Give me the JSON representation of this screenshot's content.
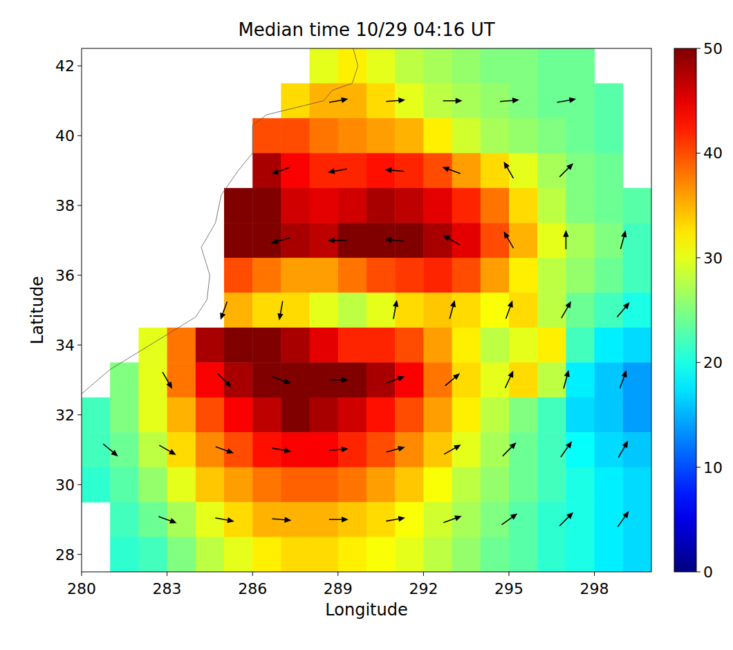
{
  "chart_data": {
    "type": "heatmap",
    "title": "Median time 10/29 04:16 UT",
    "x_label": "Longitude",
    "y_label": "Latitude",
    "xlim": [
      280,
      300
    ],
    "ylim": [
      27.5,
      42.5
    ],
    "xticks": [
      280,
      283,
      286,
      289,
      292,
      295,
      298
    ],
    "yticks": [
      28,
      30,
      32,
      34,
      36,
      38,
      40,
      42
    ],
    "colorbar": {
      "range": [
        0,
        50
      ],
      "ticks": [
        0,
        10,
        20,
        30,
        40,
        50
      ]
    },
    "cells": {
      "lon": [
        280.5,
        281.5,
        282.5,
        283.5,
        284.5,
        285.5,
        286.5,
        287.5,
        288.5,
        289.5,
        290.5,
        291.5,
        292.5,
        293.5,
        294.5,
        295.5,
        296.5,
        297.5,
        298.5,
        299.5
      ],
      "lat": [
        42,
        41,
        40,
        39,
        38,
        37,
        36,
        35,
        34,
        33,
        32,
        31,
        30,
        29,
        28
      ],
      "values": [
        [
          null,
          null,
          null,
          null,
          null,
          null,
          null,
          null,
          30,
          32,
          30,
          28,
          27,
          26,
          25,
          25,
          24,
          24,
          null,
          null
        ],
        [
          null,
          null,
          null,
          null,
          null,
          null,
          null,
          33,
          35,
          35,
          33,
          30,
          28,
          27,
          26,
          25,
          24,
          24,
          23,
          null
        ],
        [
          null,
          null,
          null,
          null,
          null,
          null,
          40,
          40,
          38,
          37,
          36,
          35,
          32,
          29,
          27,
          26,
          25,
          24,
          23,
          null
        ],
        [
          null,
          null,
          null,
          null,
          null,
          null,
          48,
          44,
          42,
          42,
          43,
          42,
          40,
          36,
          33,
          30,
          27,
          25,
          24,
          null
        ],
        [
          null,
          null,
          null,
          null,
          null,
          50,
          50,
          46,
          45,
          46,
          48,
          47,
          45,
          42,
          38,
          33,
          28,
          25,
          24,
          23
        ],
        [
          null,
          null,
          null,
          null,
          null,
          50,
          50,
          48,
          47,
          50,
          50,
          50,
          48,
          45,
          40,
          35,
          30,
          27,
          25,
          22
        ],
        [
          null,
          null,
          null,
          null,
          null,
          40,
          38,
          36,
          36,
          38,
          40,
          41,
          42,
          40,
          36,
          32,
          28,
          26,
          24,
          22
        ],
        [
          null,
          null,
          null,
          null,
          null,
          35,
          33,
          33,
          30,
          28,
          30,
          33,
          34,
          33,
          31,
          33,
          28,
          24,
          22,
          20
        ],
        [
          null,
          null,
          30,
          38,
          48,
          50,
          50,
          48,
          45,
          42,
          42,
          40,
          36,
          32,
          28,
          30,
          32,
          22,
          18,
          17
        ],
        [
          null,
          25,
          30,
          38,
          44,
          48,
          50,
          50,
          50,
          50,
          48,
          44,
          38,
          33,
          30,
          33,
          28,
          18,
          16,
          14
        ],
        [
          22,
          25,
          30,
          35,
          40,
          44,
          47,
          50,
          48,
          46,
          43,
          40,
          36,
          32,
          28,
          25,
          22,
          17,
          16,
          14
        ],
        [
          22,
          24,
          28,
          33,
          37,
          40,
          43,
          44,
          44,
          42,
          40,
          37,
          34,
          30,
          27,
          24,
          22,
          19,
          17,
          16
        ],
        [
          21,
          23,
          26,
          30,
          34,
          36,
          38,
          39,
          39,
          38,
          36,
          34,
          31,
          28,
          26,
          24,
          22,
          20,
          18,
          17
        ],
        [
          null,
          22,
          24,
          27,
          30,
          33,
          35,
          35,
          35,
          34,
          33,
          31,
          29,
          27,
          25,
          23,
          21,
          20,
          18,
          17
        ],
        [
          null,
          21,
          22,
          25,
          28,
          30,
          32,
          33,
          33,
          32,
          31,
          30,
          28,
          26,
          24,
          23,
          21,
          20,
          18,
          17
        ]
      ]
    },
    "vectors": {
      "lon": [
        289,
        291,
        293,
        295,
        297,
        287,
        289,
        291,
        293,
        295,
        297,
        287,
        289,
        291,
        293,
        295,
        297,
        299,
        285,
        287,
        291,
        293,
        295,
        297,
        299,
        283,
        285,
        287,
        289,
        291,
        293,
        295,
        297,
        299,
        281,
        283,
        285,
        287,
        289,
        291,
        293,
        295,
        297,
        299,
        283,
        285,
        287,
        289,
        291,
        293,
        295,
        297,
        299
      ],
      "lat": [
        41,
        41,
        41,
        41,
        41,
        39,
        39,
        39,
        39,
        39,
        39,
        37,
        37,
        37,
        37,
        37,
        37,
        37,
        35,
        35,
        35,
        35,
        35,
        35,
        35,
        33,
        33,
        33,
        33,
        33,
        33,
        33,
        33,
        33,
        31,
        31,
        31,
        31,
        31,
        31,
        31,
        31,
        31,
        31,
        29,
        29,
        29,
        29,
        29,
        29,
        29,
        29,
        29
      ],
      "direction": [
        10,
        5,
        0,
        5,
        10,
        200,
        190,
        175,
        160,
        120,
        45,
        195,
        180,
        175,
        150,
        120,
        90,
        75,
        250,
        260,
        80,
        75,
        70,
        60,
        50,
        300,
        315,
        340,
        0,
        20,
        40,
        65,
        75,
        70,
        320,
        330,
        340,
        350,
        5,
        15,
        30,
        45,
        55,
        60,
        340,
        350,
        355,
        0,
        10,
        20,
        35,
        45,
        55
      ]
    }
  }
}
